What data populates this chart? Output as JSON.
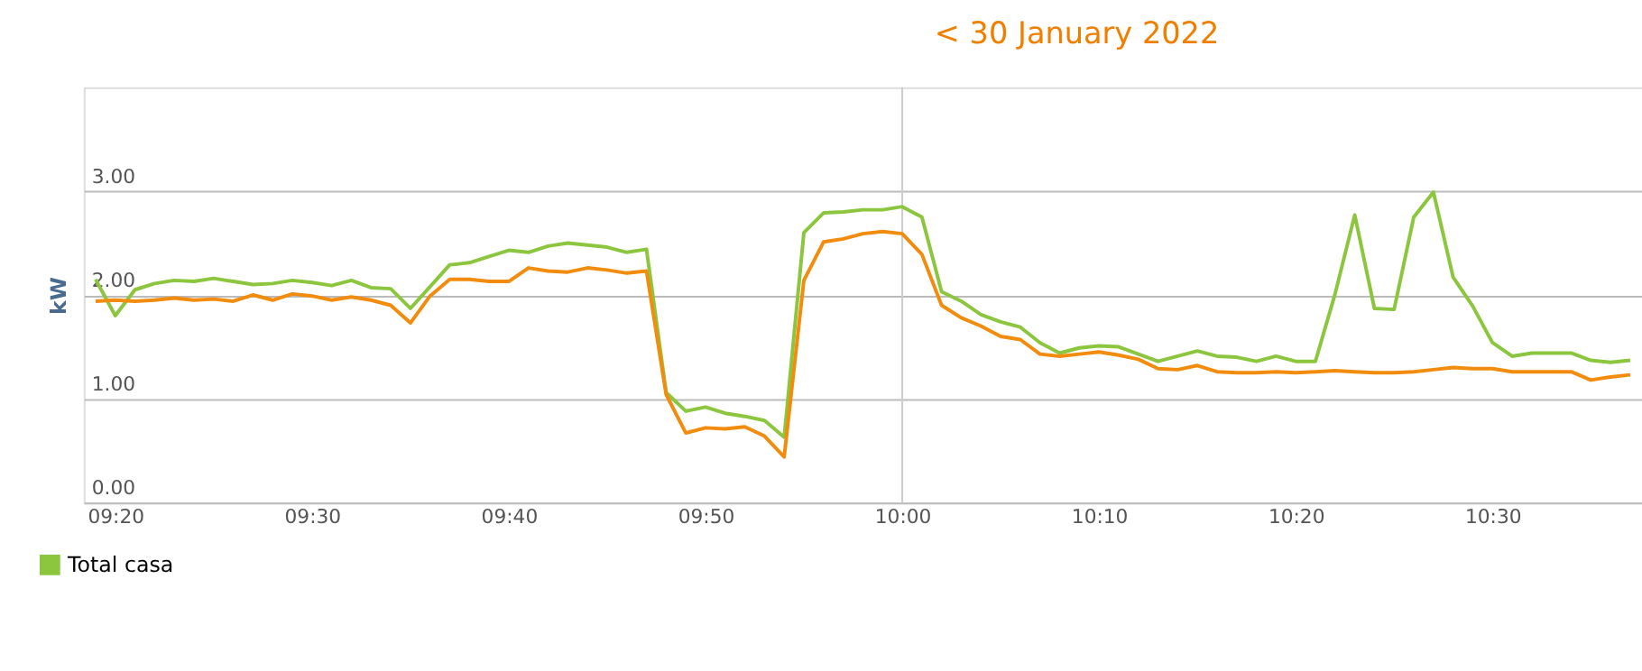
{
  "chart_data": {
    "type": "line",
    "title": "<  30 January 2022",
    "ylabel": "kW",
    "x": [
      "2022-01-30T09:19",
      "2022-01-30T09:20",
      "2022-01-30T09:21",
      "2022-01-30T09:22",
      "2022-01-30T09:23",
      "2022-01-30T09:24",
      "2022-01-30T09:25",
      "2022-01-30T09:26",
      "2022-01-30T09:27",
      "2022-01-30T09:28",
      "2022-01-30T09:29",
      "2022-01-30T09:30",
      "2022-01-30T09:31",
      "2022-01-30T09:32",
      "2022-01-30T09:33",
      "2022-01-30T09:34",
      "2022-01-30T09:35",
      "2022-01-30T09:36",
      "2022-01-30T09:37",
      "2022-01-30T09:38",
      "2022-01-30T09:39",
      "2022-01-30T09:40",
      "2022-01-30T09:41",
      "2022-01-30T09:42",
      "2022-01-30T09:43",
      "2022-01-30T09:44",
      "2022-01-30T09:45",
      "2022-01-30T09:46",
      "2022-01-30T09:47",
      "2022-01-30T09:48",
      "2022-01-30T09:49",
      "2022-01-30T09:50",
      "2022-01-30T09:51",
      "2022-01-30T09:52",
      "2022-01-30T09:53",
      "2022-01-30T09:54",
      "2022-01-30T09:55",
      "2022-01-30T09:56",
      "2022-01-30T09:57",
      "2022-01-30T09:58",
      "2022-01-30T09:59",
      "2022-01-30T10:00",
      "2022-01-30T10:01",
      "2022-01-30T10:02",
      "2022-01-30T10:03",
      "2022-01-30T10:04",
      "2022-01-30T10:05",
      "2022-01-30T10:06",
      "2022-01-30T10:07",
      "2022-01-30T10:08",
      "2022-01-30T10:09",
      "2022-01-30T10:10",
      "2022-01-30T10:11",
      "2022-01-30T10:12",
      "2022-01-30T10:13",
      "2022-01-30T10:14",
      "2022-01-30T10:15",
      "2022-01-30T10:16",
      "2022-01-30T10:17",
      "2022-01-30T10:18",
      "2022-01-30T10:19",
      "2022-01-30T10:20",
      "2022-01-30T10:21",
      "2022-01-30T10:22",
      "2022-01-30T10:23",
      "2022-01-30T10:24",
      "2022-01-30T10:25",
      "2022-01-30T10:26",
      "2022-01-30T10:27",
      "2022-01-30T10:28",
      "2022-01-30T10:29",
      "2022-01-30T10:30",
      "2022-01-30T10:31",
      "2022-01-30T10:32",
      "2022-01-30T10:33",
      "2022-01-30T10:34",
      "2022-01-30T10:35",
      "2022-01-30T10:36",
      "2022-01-30T10:37"
    ],
    "series": [
      {
        "name": "Total casa",
        "color": "#8cc63f",
        "values": [
          2.15,
          1.8,
          2.05,
          2.11,
          2.14,
          2.13,
          2.16,
          2.13,
          2.1,
          2.11,
          2.14,
          2.12,
          2.09,
          2.14,
          2.07,
          2.06,
          1.87,
          2.08,
          2.29,
          2.31,
          2.37,
          2.43,
          2.41,
          2.47,
          2.5,
          2.48,
          2.46,
          2.41,
          2.44,
          1.06,
          0.88,
          0.92,
          0.86,
          0.83,
          0.79,
          0.63,
          2.6,
          2.79,
          2.8,
          2.82,
          2.82,
          2.85,
          2.75,
          2.03,
          1.94,
          1.81,
          1.74,
          1.69,
          1.54,
          1.44,
          1.49,
          1.51,
          1.5,
          1.43,
          1.36,
          1.41,
          1.46,
          1.41,
          1.4,
          1.36,
          1.41,
          1.36,
          1.36,
          2.01,
          2.77,
          1.87,
          1.86,
          2.75,
          2.99,
          2.17,
          1.89,
          1.54,
          1.41,
          1.44,
          1.44,
          1.44,
          1.37,
          1.35,
          1.37
        ]
      },
      {
        "color": "#f28c0f",
        "values": [
          1.94,
          1.95,
          1.94,
          1.95,
          1.97,
          1.95,
          1.96,
          1.94,
          2.0,
          1.95,
          2.01,
          1.99,
          1.95,
          1.98,
          1.95,
          1.9,
          1.73,
          1.99,
          2.15,
          2.15,
          2.13,
          2.13,
          2.26,
          2.23,
          2.22,
          2.26,
          2.24,
          2.21,
          2.23,
          1.04,
          0.67,
          0.72,
          0.71,
          0.73,
          0.64,
          0.44,
          2.14,
          2.51,
          2.54,
          2.59,
          2.61,
          2.59,
          2.39,
          1.9,
          1.78,
          1.7,
          1.6,
          1.57,
          1.43,
          1.41,
          1.43,
          1.45,
          1.42,
          1.38,
          1.29,
          1.28,
          1.32,
          1.26,
          1.25,
          1.25,
          1.26,
          1.25,
          1.26,
          1.27,
          1.26,
          1.25,
          1.25,
          1.26,
          1.28,
          1.3,
          1.29,
          1.29,
          1.26,
          1.26,
          1.26,
          1.26,
          1.18,
          1.21,
          1.23
        ]
      }
    ],
    "xlim": [
      "2022-01-30T09:18:24",
      "2022-01-30T10:37:36"
    ],
    "xticks": [
      {
        "value": "2022-01-30T09:20",
        "label": "09:20"
      },
      {
        "value": "2022-01-30T09:30",
        "label": "09:30"
      },
      {
        "value": "2022-01-30T09:40",
        "label": "09:40"
      },
      {
        "value": "2022-01-30T09:50",
        "label": "09:50"
      },
      {
        "value": "2022-01-30T10:00",
        "label": "10:00"
      },
      {
        "value": "2022-01-30T10:10",
        "label": "10:10"
      },
      {
        "value": "2022-01-30T10:20",
        "label": "10:20"
      },
      {
        "value": "2022-01-30T10:30",
        "label": "10:30"
      }
    ],
    "ylim": [
      0,
      4
    ],
    "yticks": [
      {
        "value": 0,
        "label": "0.00"
      },
      {
        "value": 1,
        "label": "1.00"
      },
      {
        "value": 2,
        "label": "2.00"
      },
      {
        "value": 3,
        "label": "3.00"
      }
    ],
    "ref_lines": [
      {
        "axis": "x",
        "value": "2022-01-30T10:00",
        "color": "#cccccc"
      }
    ],
    "grid": "y",
    "legend": "bottom left",
    "marker": "none",
    "line_style": "solid"
  }
}
